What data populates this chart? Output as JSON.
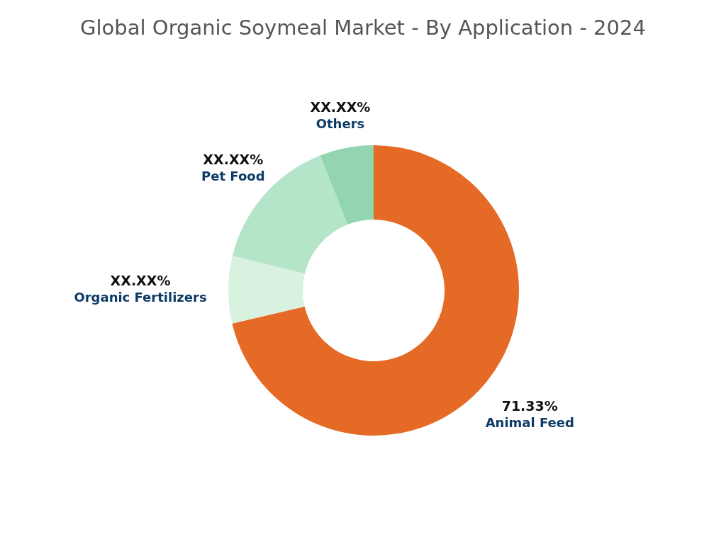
{
  "chart_data": {
    "type": "donut",
    "title": "Global Organic Soymeal Market - By Application - 2024",
    "categories": [
      "Animal Feed",
      "Organic Fertilizers",
      "Pet Food",
      "Others"
    ],
    "values": [
      71.33,
      7.5,
      15.17,
      6.0
    ],
    "colors": [
      "#e46a25",
      "#d9f2e0",
      "#b5e5c8",
      "#93d5b1"
    ],
    "value_labels": [
      "71.33%",
      "XX.XX%",
      "XX.XX%",
      "XX.XX%"
    ]
  }
}
